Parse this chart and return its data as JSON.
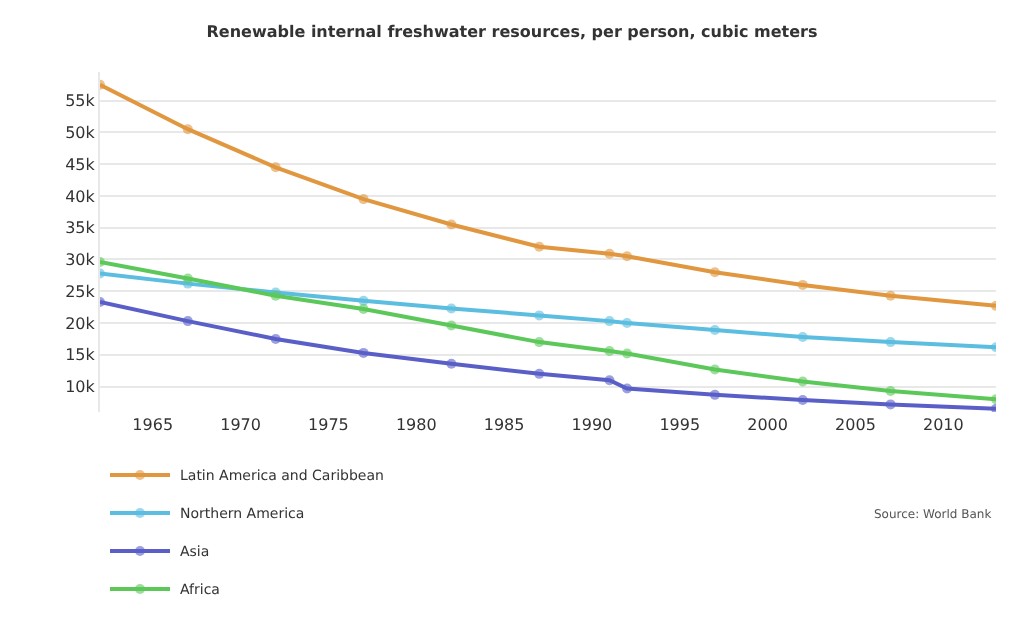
{
  "chart_data": {
    "type": "line",
    "title": "Renewable internal freshwater resources, per person, cubic meters",
    "x": [
      1962,
      1967,
      1972,
      1977,
      1982,
      1987,
      1991,
      1992,
      1997,
      2002,
      2007,
      2013
    ],
    "series": [
      {
        "name": "Latin America and Caribbean",
        "color": "#e0973f",
        "values": [
          57500,
          50500,
          44500,
          39500,
          35500,
          32000,
          30900,
          30500,
          28000,
          26000,
          24300,
          22700
        ]
      },
      {
        "name": "Northern America",
        "color": "#5bbde0",
        "values": [
          27800,
          26200,
          24800,
          23500,
          22300,
          21200,
          20300,
          20000,
          18900,
          17800,
          17000,
          16200
        ]
      },
      {
        "name": "Asia",
        "color": "#5a5fc8",
        "values": [
          23300,
          20300,
          17500,
          15300,
          13600,
          12000,
          11000,
          9700,
          8700,
          7900,
          7200,
          6500
        ]
      },
      {
        "name": "Africa",
        "color": "#5cc85a",
        "values": [
          29600,
          27000,
          24300,
          22200,
          19600,
          17000,
          15600,
          15200,
          12700,
          10800,
          9300,
          8000
        ]
      }
    ],
    "xlim": [
      1962,
      2013
    ],
    "xticks": [
      1965,
      1970,
      1975,
      1980,
      1985,
      1990,
      1995,
      2000,
      2005,
      2010
    ],
    "ylim": [
      6000,
      59500
    ],
    "yticks": [
      {
        "value": 10000,
        "label": "10k"
      },
      {
        "value": 15000,
        "label": "15k"
      },
      {
        "value": 20000,
        "label": "20k"
      },
      {
        "value": 25000,
        "label": "25k"
      },
      {
        "value": 30000,
        "label": "30k"
      },
      {
        "value": 35000,
        "label": "35k"
      },
      {
        "value": 40000,
        "label": "40k"
      },
      {
        "value": 45000,
        "label": "45k"
      },
      {
        "value": 50000,
        "label": "50k"
      },
      {
        "value": 55000,
        "label": "55k"
      }
    ],
    "grid": "y",
    "legend": "bottom left",
    "marker": "circle",
    "line_style": "solid",
    "annotations": [
      "Source: World Bank"
    ]
  }
}
